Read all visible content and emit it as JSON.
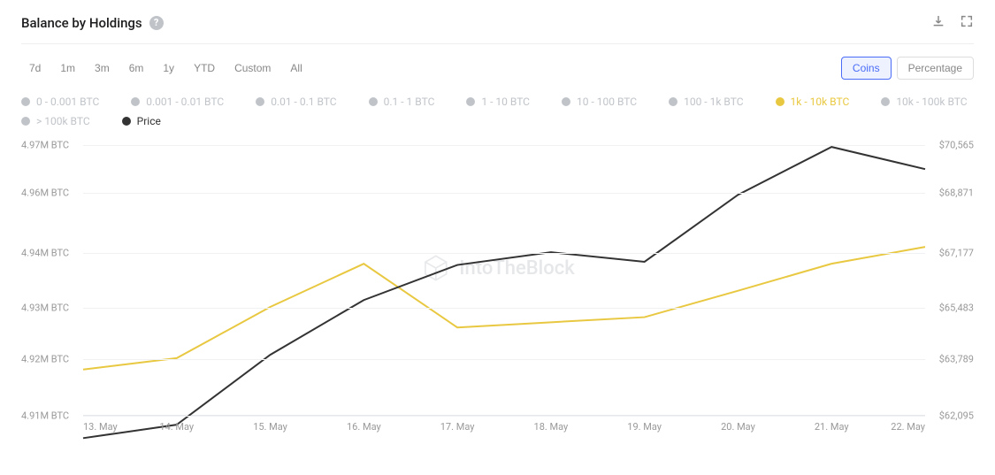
{
  "title": "Balance by Holdings",
  "header_icons": {
    "download": "download-icon",
    "expand": "expand-icon"
  },
  "ranges": [
    "7d",
    "1m",
    "3m",
    "6m",
    "1y",
    "YTD",
    "Custom",
    "All"
  ],
  "toggles": {
    "coins": "Coins",
    "percentage": "Percentage",
    "active": "coins"
  },
  "legend_inactive": [
    "0 - 0.001 BTC",
    "0.001 - 0.01 BTC",
    "0.01 - 0.1 BTC",
    "0.1 - 1 BTC",
    "1 - 10 BTC",
    "10 - 100 BTC",
    "100 - 1k BTC",
    "10k - 100k BTC",
    "> 100k BTC"
  ],
  "legend_active_yellow": "1k - 10k BTC",
  "legend_active_black": "Price",
  "watermark": "IntoTheBlock",
  "chart": {
    "type": "line",
    "background_color": "#ffffff",
    "grid_color": "#f0f1f3",
    "axis_text_color": "#999999",
    "axis_fontsize": 11,
    "x_labels": [
      "13. May",
      "14. May",
      "15. May",
      "16. May",
      "17. May",
      "18. May",
      "19. May",
      "20. May",
      "21. May",
      "22. May"
    ],
    "y_left": {
      "labels": [
        "4.97M BTC",
        "4.96M BTC",
        "4.94M BTC",
        "4.93M BTC",
        "4.92M BTC",
        "4.91M BTC"
      ],
      "values": [
        4.97,
        4.96,
        4.94,
        4.93,
        4.92,
        4.91
      ],
      "min": 4.91,
      "max": 4.97
    },
    "y_right": {
      "labels": [
        "$70,565",
        "$68,871",
        "$67,177",
        "$65,483",
        "$63,789",
        "$62,095"
      ],
      "values": [
        70565,
        68871,
        67177,
        65483,
        63789,
        62095
      ],
      "min": 62095,
      "max": 70565
    },
    "series": [
      {
        "name": "1k-10k BTC",
        "color": "#e9c841",
        "stroke_width": 2,
        "axis": "left",
        "data": [
          4.918,
          4.92,
          4.93,
          4.938,
          4.926,
          4.927,
          4.928,
          4.933,
          4.938,
          4.942
        ]
      },
      {
        "name": "Price",
        "color": "#333333",
        "stroke_width": 2,
        "axis": "right",
        "data": [
          61400,
          61800,
          63900,
          65700,
          66800,
          67200,
          66900,
          68800,
          70500,
          69700
        ]
      }
    ]
  }
}
